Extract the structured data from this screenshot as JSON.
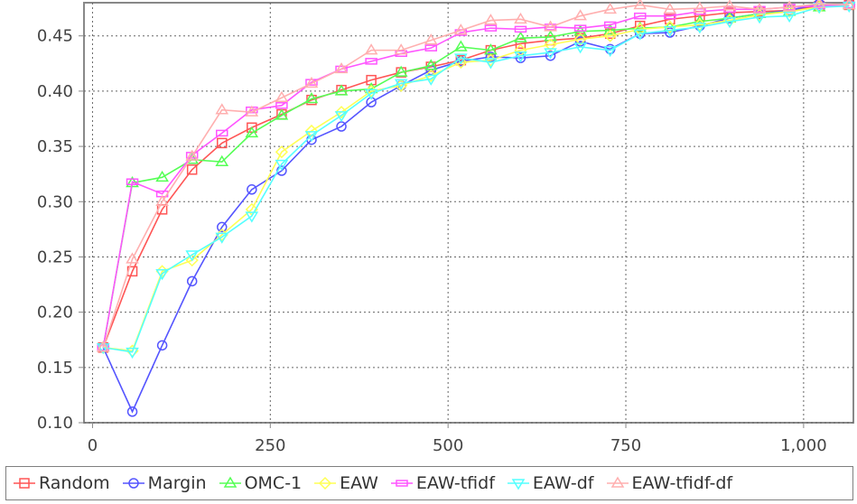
{
  "chart_data": {
    "type": "line",
    "title": "",
    "xlabel": "",
    "ylabel": "",
    "xlim": [
      -12,
      1070
    ],
    "ylim": [
      0.1,
      0.48
    ],
    "x_ticks": [
      0,
      250,
      500,
      750,
      1000
    ],
    "x_tick_labels": [
      "0",
      "250",
      "500",
      "750",
      "1,000"
    ],
    "y_ticks": [
      0.1,
      0.15,
      0.2,
      0.25,
      0.3,
      0.35,
      0.4,
      0.45
    ],
    "y_tick_labels": [
      "0.10",
      "0.15",
      "0.20",
      "0.25",
      "0.30",
      "0.35",
      "0.40",
      "0.45"
    ],
    "grid": true,
    "legend_position": "bottom",
    "series": [
      {
        "name": "Random",
        "color": "#ff5555",
        "marker": "square",
        "x": [
          15,
          56,
          98,
          140,
          182,
          224,
          266,
          308,
          350,
          392,
          434,
          476,
          518,
          560,
          602,
          644,
          686,
          728,
          770,
          812,
          854,
          896,
          938,
          980,
          1022,
          1064
        ],
        "y": [
          0.168,
          0.237,
          0.293,
          0.329,
          0.353,
          0.367,
          0.379,
          0.392,
          0.401,
          0.41,
          0.417,
          0.422,
          0.428,
          0.437,
          0.443,
          0.446,
          0.448,
          0.452,
          0.459,
          0.465,
          0.468,
          0.471,
          0.472,
          0.473,
          0.477,
          0.478
        ]
      },
      {
        "name": "Margin",
        "color": "#5555ff",
        "marker": "circle",
        "x": [
          15,
          56,
          98,
          140,
          182,
          224,
          266,
          308,
          350,
          392,
          434,
          476,
          518,
          560,
          602,
          644,
          686,
          728,
          770,
          812,
          854,
          896,
          938,
          980,
          1022,
          1064
        ],
        "y": [
          0.168,
          0.11,
          0.17,
          0.228,
          0.277,
          0.311,
          0.328,
          0.356,
          0.368,
          0.39,
          0.405,
          0.419,
          0.427,
          0.431,
          0.43,
          0.432,
          0.445,
          0.438,
          0.452,
          0.453,
          0.459,
          0.466,
          0.47,
          0.473,
          0.479,
          0.478
        ]
      },
      {
        "name": "OMC-1",
        "color": "#55ff55",
        "marker": "triangle-up",
        "x": [
          15,
          56,
          98,
          140,
          182,
          224,
          266,
          308,
          350,
          392,
          434,
          476,
          518,
          560,
          602,
          644,
          686,
          728,
          770,
          812,
          854,
          896,
          938,
          980,
          1022,
          1064
        ],
        "y": [
          0.168,
          0.317,
          0.322,
          0.338,
          0.336,
          0.362,
          0.378,
          0.393,
          0.4,
          0.402,
          0.417,
          0.423,
          0.44,
          0.437,
          0.448,
          0.449,
          0.454,
          0.455,
          0.457,
          0.458,
          0.463,
          0.466,
          0.47,
          0.472,
          0.476,
          0.478
        ]
      },
      {
        "name": "EAW",
        "color": "#ffff55",
        "marker": "diamond",
        "x": [
          15,
          56,
          98,
          140,
          182,
          224,
          266,
          308,
          350,
          392,
          434,
          476,
          518,
          560,
          602,
          644,
          686,
          728,
          770,
          812,
          854,
          896,
          938,
          980,
          1022,
          1064
        ],
        "y": [
          0.168,
          0.165,
          0.237,
          0.247,
          0.27,
          0.293,
          0.345,
          0.364,
          0.381,
          0.4,
          0.405,
          0.414,
          0.426,
          0.428,
          0.437,
          0.442,
          0.447,
          0.45,
          0.456,
          0.458,
          0.46,
          0.464,
          0.469,
          0.472,
          0.476,
          0.478
        ]
      },
      {
        "name": "EAW-tfidf",
        "color": "#ff55ff",
        "marker": "rect-h",
        "x": [
          15,
          56,
          98,
          140,
          182,
          224,
          266,
          308,
          350,
          392,
          434,
          476,
          518,
          560,
          602,
          644,
          686,
          728,
          770,
          812,
          854,
          896,
          938,
          980,
          1022,
          1064
        ],
        "y": [
          0.168,
          0.318,
          0.307,
          0.342,
          0.362,
          0.383,
          0.387,
          0.408,
          0.42,
          0.427,
          0.434,
          0.439,
          0.453,
          0.457,
          0.456,
          0.458,
          0.457,
          0.46,
          0.468,
          0.468,
          0.472,
          0.474,
          0.474,
          0.476,
          0.477,
          0.478
        ]
      },
      {
        "name": "EAW-df",
        "color": "#55ffff",
        "marker": "triangle-down",
        "x": [
          15,
          56,
          98,
          140,
          182,
          224,
          266,
          308,
          350,
          392,
          434,
          476,
          518,
          560,
          602,
          644,
          686,
          728,
          770,
          812,
          854,
          896,
          938,
          980,
          1022,
          1064
        ],
        "y": [
          0.168,
          0.164,
          0.235,
          0.252,
          0.268,
          0.287,
          0.334,
          0.36,
          0.378,
          0.398,
          0.407,
          0.411,
          0.43,
          0.426,
          0.432,
          0.435,
          0.44,
          0.437,
          0.452,
          0.455,
          0.458,
          0.463,
          0.467,
          0.468,
          0.476,
          0.477
        ]
      },
      {
        "name": "EAW-tfidf-df",
        "color": "#ffafaf",
        "marker": "triangle-up",
        "x": [
          15,
          56,
          98,
          140,
          182,
          224,
          266,
          308,
          350,
          392,
          434,
          476,
          518,
          560,
          602,
          644,
          686,
          728,
          770,
          812,
          854,
          896,
          938,
          980,
          1022,
          1064
        ],
        "y": [
          0.168,
          0.248,
          0.3,
          0.341,
          0.383,
          0.381,
          0.394,
          0.407,
          0.42,
          0.437,
          0.437,
          0.446,
          0.455,
          0.464,
          0.465,
          0.458,
          0.468,
          0.474,
          0.478,
          0.474,
          0.475,
          0.477,
          0.474,
          0.476,
          0.479,
          0.478
        ]
      }
    ]
  }
}
